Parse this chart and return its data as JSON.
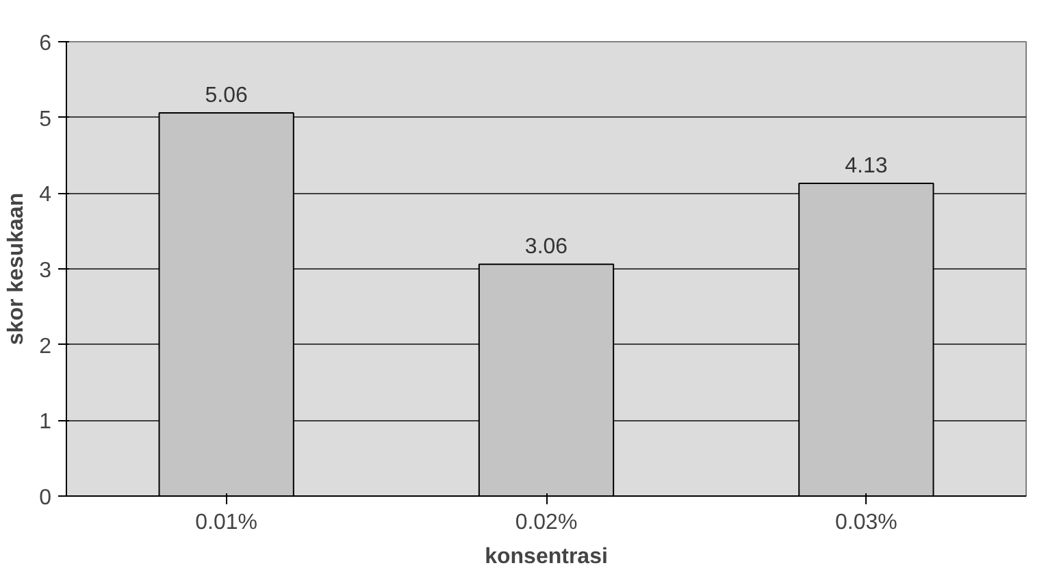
{
  "chart_data": {
    "type": "bar",
    "xlabel": "konsentrasi",
    "ylabel": "skor kesukaan",
    "categories": [
      "0.01%",
      "0.02%",
      "0.03%"
    ],
    "values": [
      5.06,
      3.06,
      4.13
    ],
    "color": "#c4c4c4",
    "ylim": [
      0,
      6
    ],
    "yticks": [
      0,
      1,
      2,
      3,
      4,
      5,
      6
    ],
    "grid": "y",
    "data_labels": true
  }
}
